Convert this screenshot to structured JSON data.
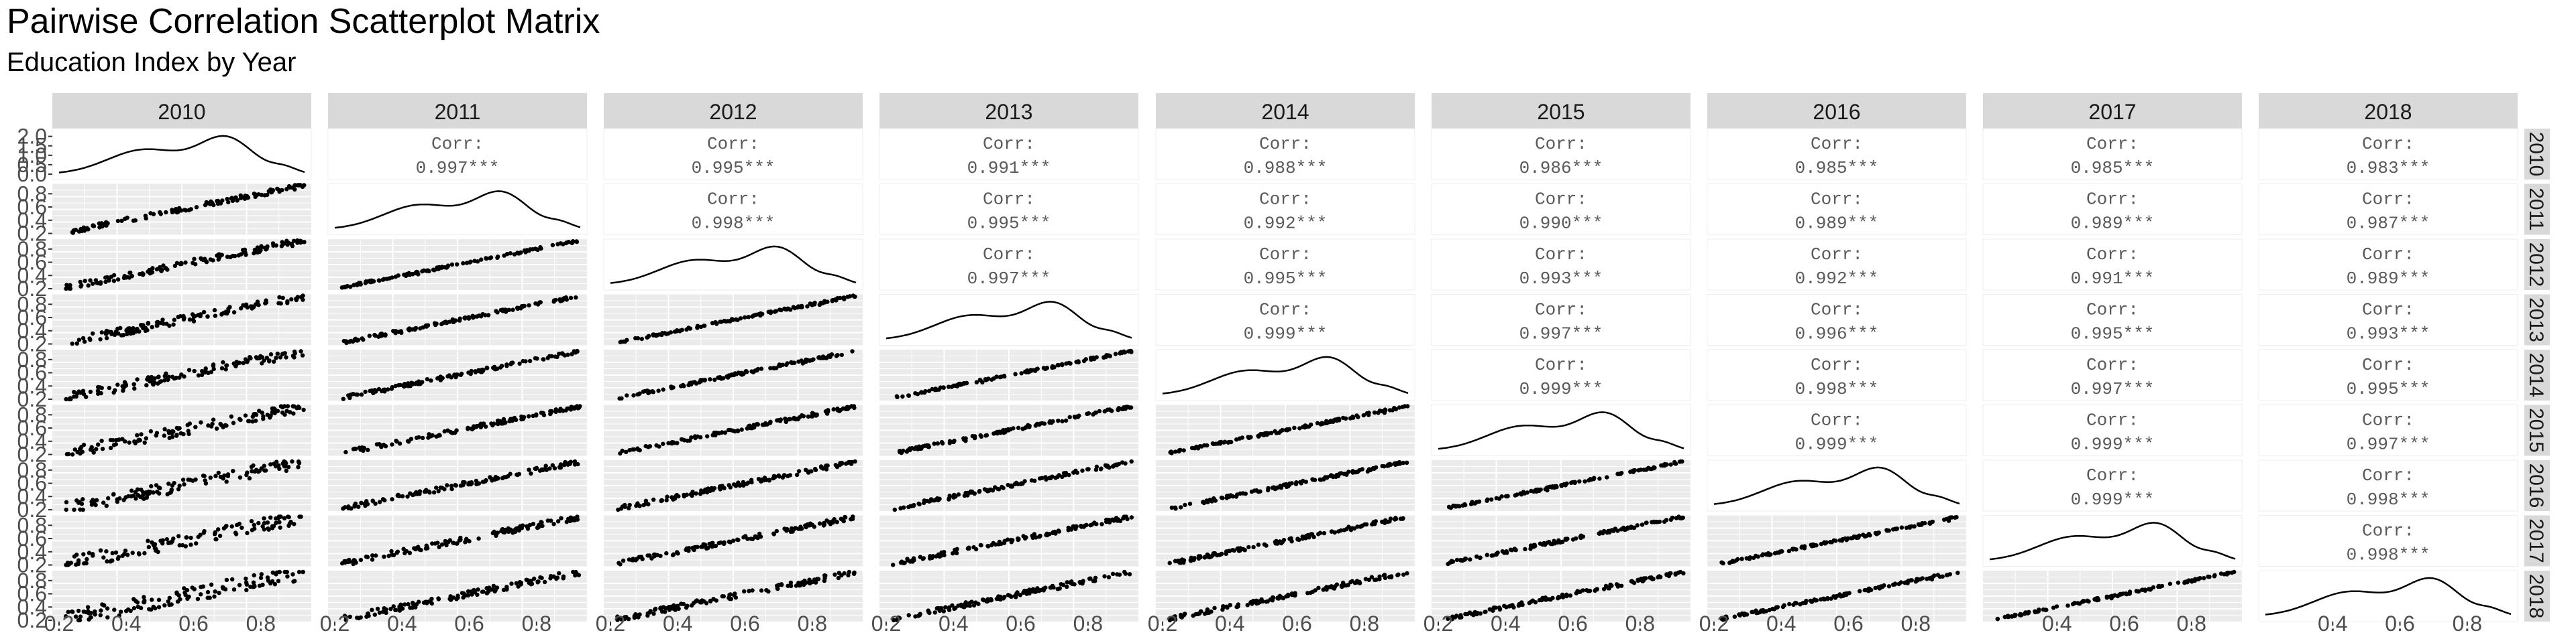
{
  "title": "Pairwise Correlation Scatterplot Matrix",
  "subtitle": "Education Index by Year",
  "chart_data": {
    "type": "scatter",
    "layout": "pairwise-matrix",
    "variables": [
      "2010",
      "2011",
      "2012",
      "2013",
      "2014",
      "2015",
      "2016",
      "2017",
      "2018"
    ],
    "row_strip_labels": [
      "2010",
      "2011",
      "2012",
      "2013",
      "2014",
      "2015",
      "2016",
      "2017",
      "2018"
    ],
    "diagonal": "density",
    "lower": "scatter",
    "upper": "correlation",
    "corr_label": "Corr:",
    "significance": "***",
    "correlations": [
      [
        "",
        "0.997",
        "0.995",
        "0.991",
        "0.988",
        "0.986",
        "0.985",
        "0.985",
        "0.983"
      ],
      [
        "",
        "",
        "0.998",
        "0.995",
        "0.992",
        "0.990",
        "0.989",
        "0.989",
        "0.987"
      ],
      [
        "",
        "",
        "",
        "0.997",
        "0.995",
        "0.993",
        "0.992",
        "0.991",
        "0.989"
      ],
      [
        "",
        "",
        "",
        "",
        "0.999",
        "0.997",
        "0.996",
        "0.995",
        "0.993"
      ],
      [
        "",
        "",
        "",
        "",
        "",
        "0.999",
        "0.998",
        "0.997",
        "0.995"
      ],
      [
        "",
        "",
        "",
        "",
        "",
        "",
        "0.999",
        "0.999",
        "0.997"
      ],
      [
        "",
        "",
        "",
        "",
        "",
        "",
        "",
        "0.999",
        "0.998"
      ],
      [
        "",
        "",
        "",
        "",
        "",
        "",
        "",
        "",
        "0.998"
      ],
      [
        "",
        "",
        "",
        "",
        "",
        "",
        "",
        "",
        ""
      ]
    ],
    "x_ticks": [
      "0.2",
      "0.4",
      "0.6",
      "0.8"
    ],
    "x_ticks_last_two": [
      "0.4",
      "0.6",
      "0.8"
    ],
    "y_ticks": [
      "0.2",
      "0.4",
      "0.6",
      "0.8"
    ],
    "density_y_ticks": [
      "0.0",
      "0.5",
      "1.0",
      "1.5",
      "2.0"
    ],
    "xlim": [
      0.18,
      0.95
    ],
    "ylim": [
      0.18,
      0.95
    ],
    "density_ylim": [
      0,
      2.2
    ],
    "grid": true,
    "colors": {
      "panel": "#ebebeb",
      "strip": "#d9d9d9",
      "grid": "#ffffff",
      "point": "#000000",
      "corr_text": "#5a5a5a"
    }
  }
}
